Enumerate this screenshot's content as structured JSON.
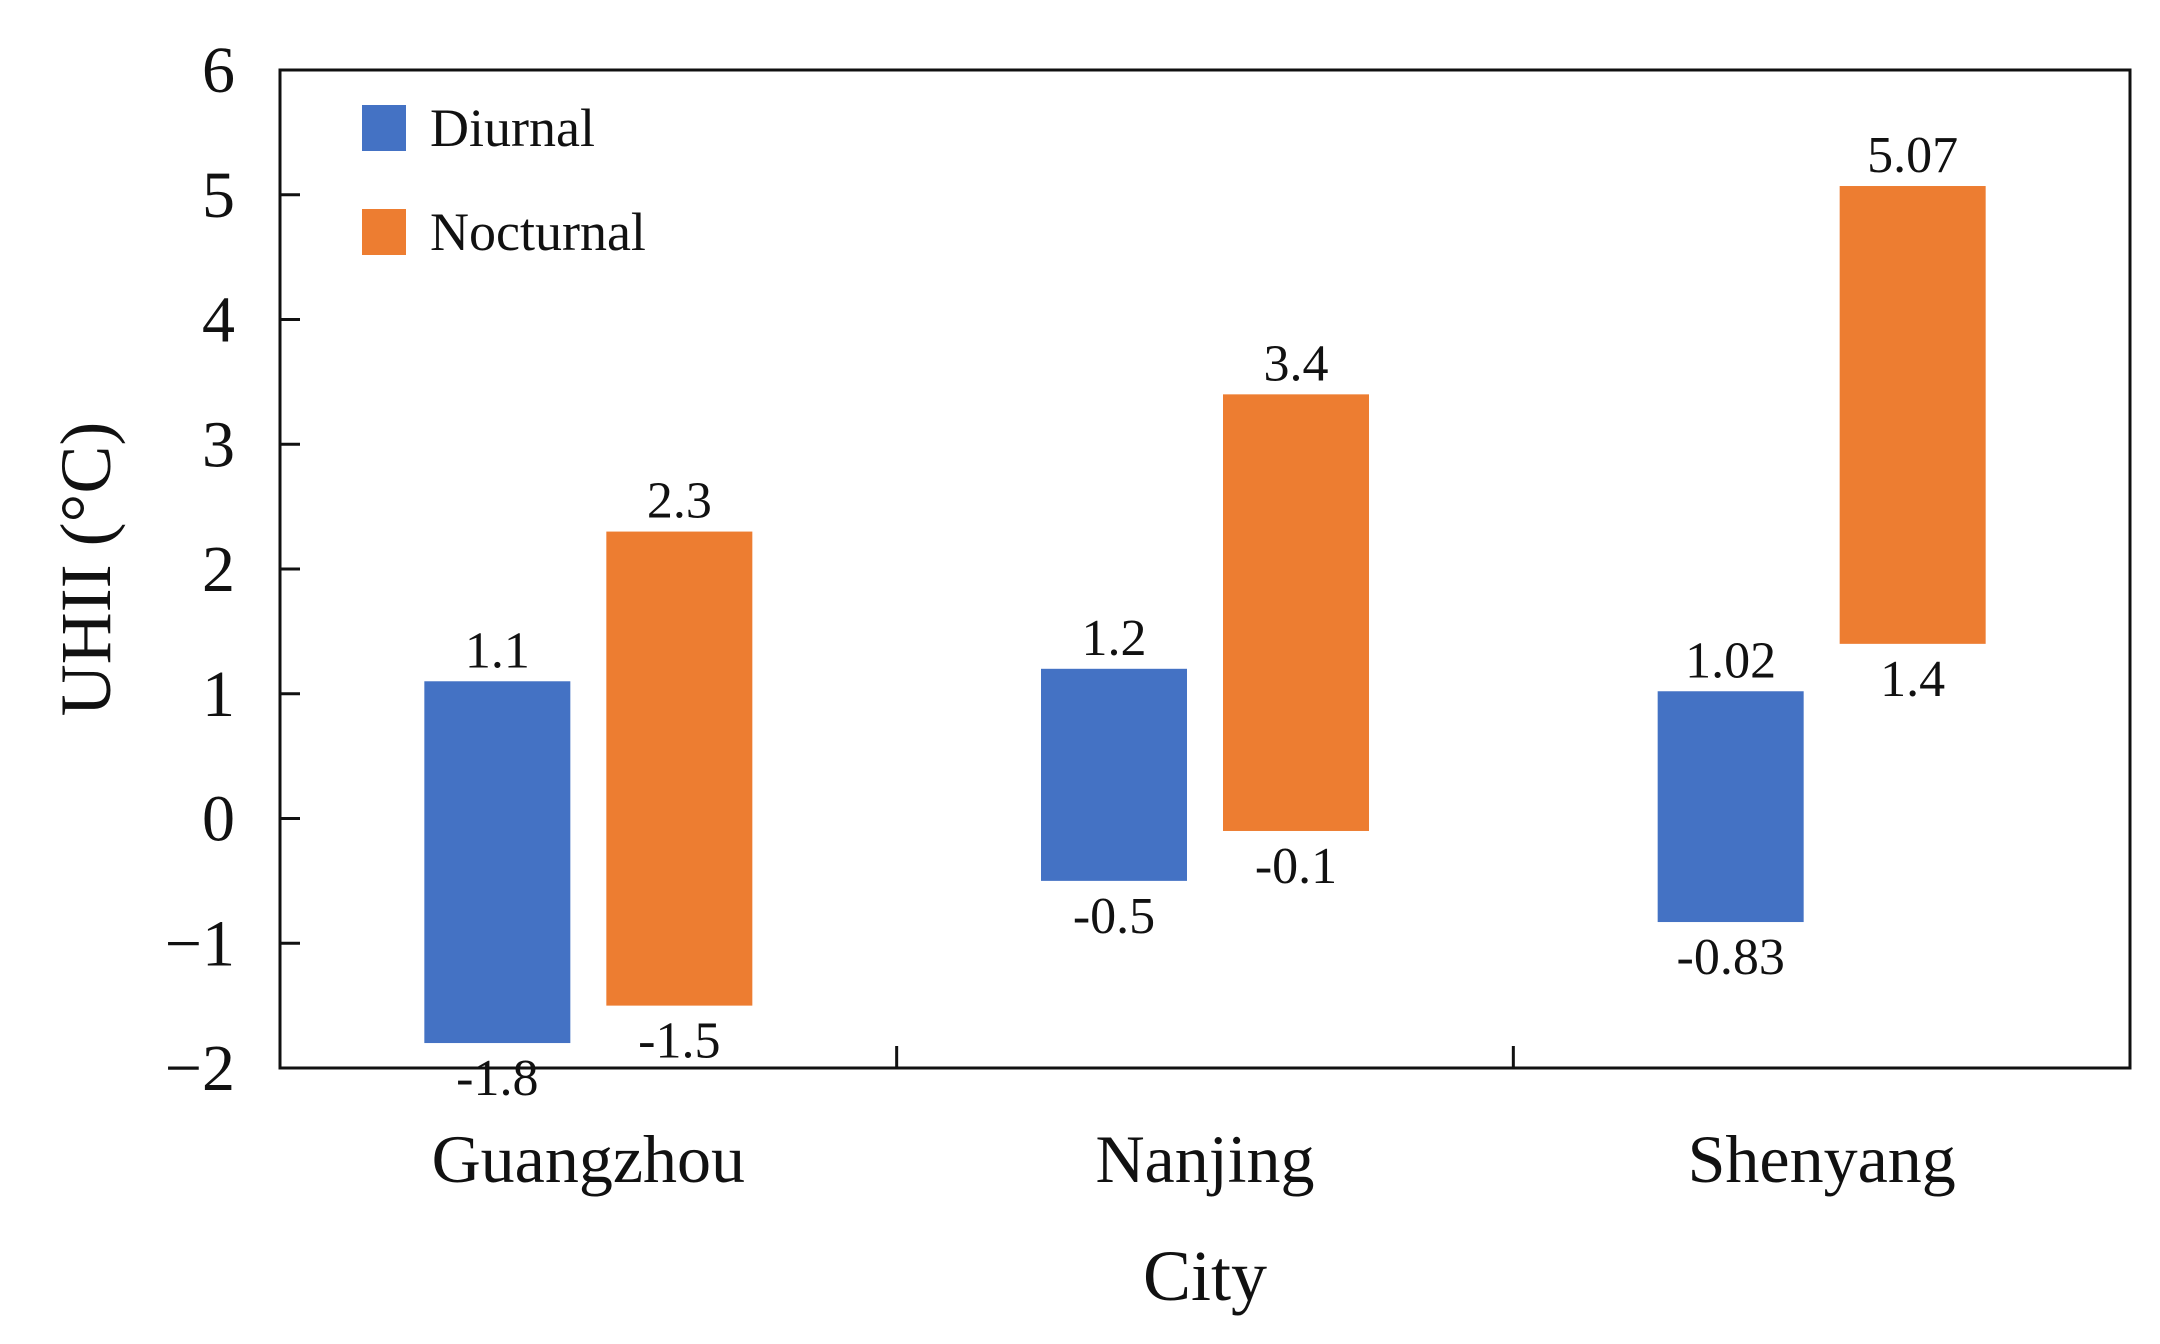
{
  "chart_data": {
    "type": "bar",
    "subtype": "floating-range",
    "title": "",
    "xlabel": "City",
    "ylabel": "UHII (°C)",
    "ylim": [
      -2,
      6
    ],
    "yticks": [
      -2,
      -1,
      0,
      1,
      2,
      3,
      4,
      5,
      6
    ],
    "ytick_labels": [
      "−2",
      "−1",
      "0",
      "1",
      "2",
      "3",
      "4",
      "5",
      "6"
    ],
    "grid": false,
    "legend_position": "top-left",
    "categories": [
      "Guangzhou",
      "Nanjing",
      "Shenyang"
    ],
    "series": [
      {
        "name": "Diurnal",
        "color": "#4472C4",
        "low": [
          -1.8,
          -0.5,
          -0.83
        ],
        "high": [
          1.1,
          1.2,
          1.02
        ],
        "low_labels": [
          "-1.8",
          "-0.5",
          "-0.83"
        ],
        "high_labels": [
          "1.1",
          "1.2",
          "1.02"
        ]
      },
      {
        "name": "Nocturnal",
        "color": "#ED7D31",
        "low": [
          -1.5,
          -0.1,
          1.4
        ],
        "high": [
          2.3,
          3.4,
          5.07
        ],
        "low_labels": [
          "-1.5",
          "-0.1",
          "1.4"
        ],
        "high_labels": [
          "2.3",
          "3.4",
          "5.07"
        ]
      }
    ]
  }
}
